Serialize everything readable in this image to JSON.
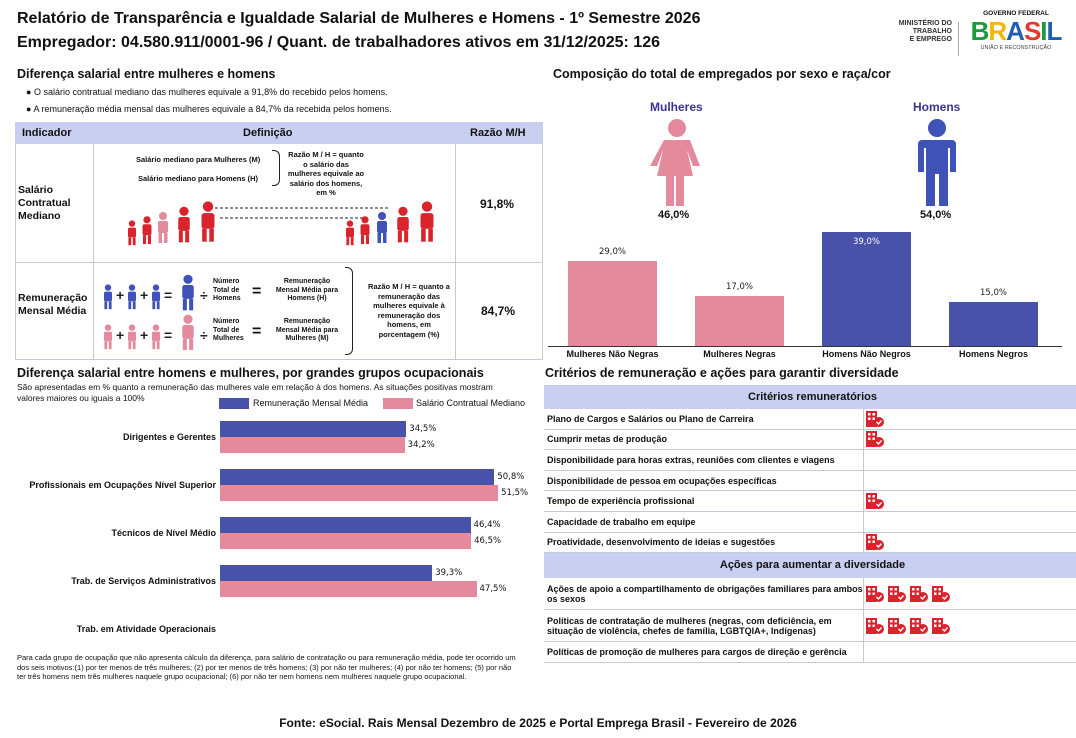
{
  "header": {
    "title": "Relatório de Transparência e Igualdade Salarial de Mulheres e Homens - 1º Semestre 2026",
    "subtitle": "Empregador: 04.580.911/0001-96 / Quant. de trabalhadores ativos em 31/12/2025: 126",
    "ministry": [
      "MINISTÉRIO DO",
      "TRABALHO",
      "E EMPREGO"
    ],
    "gov_top": "GOVERNO FEDERAL",
    "gov_brand": "BRASIL",
    "gov_bottom": "UNIÃO E RECONSTRUÇÃO"
  },
  "gap": {
    "title": "Diferença salarial entre mulheres e homens",
    "bullet1": "O salário contratual mediano das mulheres equivale a 91,8% do recebido pelos homens.",
    "bullet2": "A remuneração média mensal das mulheres equivale a 84,7% da recebida pelos homens.",
    "col_indicator": "Indicador",
    "col_definition": "Definição",
    "col_ratio": "Razão M/H",
    "row1_name": "Salário Contratual Mediano",
    "row1_f": "Salário mediano para Mulheres (M)",
    "row1_m": "Salário mediano para Homens (H)",
    "row1_note": "Razão M / H = quanto o salário das mulheres equivale ao salário dos homens, em %",
    "row1_ratio": "91,8%",
    "row2_name": "Remuneração Mensal Média",
    "row2_total_m": "Número Total de Homens",
    "row2_total_f": "Número Total de Mulheres",
    "row2_rem_m": "Remuneração Mensal Média para Homens (H)",
    "row2_rem_f": "Remuneração Mensal Média para Mulheres (M)",
    "row2_note": "Razão M / H = quanto a remuneração das mulheres equivale à remuneração dos homens, em porcentagem (%)",
    "row2_ratio": "84,7%"
  },
  "composition": {
    "title": "Composição do total de empregados por sexo e raça/cor",
    "women_label": "Mulheres",
    "women_pct": "46,0%",
    "men_label": "Homens",
    "men_pct": "54,0%",
    "color_women": "#e58a9c",
    "color_men": "#4852a8"
  },
  "occ": {
    "title": "Diferença salarial entre homens e mulheres, por grandes grupos ocupacionais",
    "desc": "São apresentadas em % quanto a remuneração das mulheres vale em relação à dos homens. As situações positivas mostram valores maiores ou iguais a 100%",
    "legend_blue": "Remuneração Mensal Média",
    "legend_pink": "Salário Contratual Mediano",
    "footnote": "Para cada grupo de ocupação que não apresenta cálculo da diferença, para salário de contratação ou para remuneração média, pode ter ocorrido um dos seis motivos:(1) por ter menos de três mulheres; (2) por ter menos de três homens; (3) por não ter mulheres; (4) por não ter homens; (5) por não ter três homens nem três mulheres naquele grupo ocupacional; (6) por não ter nem homens nem mulheres naquele grupo ocupacional."
  },
  "criteria": {
    "title": "Critérios de remuneração e ações para garantir diversidade",
    "header1": "Critérios remuneratórios",
    "items": [
      {
        "label": "Plano de Cargos e Salários ou Plano de Carreira",
        "icons": 1
      },
      {
        "label": "Cumprir metas de produção",
        "icons": 1
      },
      {
        "label": "Disponibilidade para horas extras, reuniões com clientes e viagens",
        "icons": 0
      },
      {
        "label": "Disponibilidade de pessoa em ocupações específicas",
        "icons": 0
      },
      {
        "label": "Tempo de experiência profissional",
        "icons": 1
      },
      {
        "label": "Capacidade de trabalho em equipe",
        "icons": 0
      },
      {
        "label": "Proatividade, desenvolvimento de ideias e sugestões",
        "icons": 1
      }
    ],
    "header2": "Ações para aumentar a diversidade",
    "actions": [
      {
        "label": "Ações de apoio a compartilhamento de obrigações familiares para ambos os sexos",
        "icons": 4
      },
      {
        "label": "Políticas de contratação de mulheres (negras, com deficiência, em situação de violência, chefes de família, LGBTQIA+, Indígenas)",
        "icons": 4
      },
      {
        "label": "Políticas de promoção de mulheres para cargos de direção e gerência",
        "icons": 0
      }
    ]
  },
  "footer": "Fonte: eSocial. Rais Mensal Dezembro de 2025 e Portal Emprega Brasil - Fevereiro de 2026",
  "chart_data": [
    {
      "type": "bar",
      "title": "Composição do total de empregados por sexo e raça/cor",
      "categories": [
        "Mulheres Não Negras",
        "Mulheres Negras",
        "Homens Não Negros",
        "Homens Negros"
      ],
      "values": [
        29.0,
        17.0,
        39.0,
        15.0
      ],
      "labels": [
        "29,0%",
        "17,0%",
        "39,0%",
        "15,0%"
      ],
      "colors": [
        "#e58a9c",
        "#e58a9c",
        "#4852a8",
        "#4852a8"
      ],
      "ylim": [
        0,
        40
      ]
    },
    {
      "type": "bar",
      "orientation": "horizontal",
      "title": "Diferença salarial entre homens e mulheres, por grandes grupos ocupacionais",
      "categories": [
        "Dirigentes e Gerentes",
        "Profissionais em Ocupações Nível Superior",
        "Técnicos de Nível Médio",
        "Trab. de Serviços Administrativos",
        "Trab. em Atividade Operacionais"
      ],
      "series": [
        {
          "name": "Remuneração Mensal Média",
          "values": [
            34.5,
            50.8,
            46.4,
            39.3,
            null
          ],
          "labels": [
            "34,5%",
            "50,8%",
            "46,4%",
            "39,3%",
            ""
          ]
        },
        {
          "name": "Salário Contratual Mediano",
          "values": [
            34.2,
            51.5,
            46.5,
            47.5,
            null
          ],
          "labels": [
            "34,2%",
            "51,5%",
            "46,5%",
            "47,5%",
            ""
          ]
        }
      ],
      "xlim": [
        0,
        60
      ]
    }
  ]
}
